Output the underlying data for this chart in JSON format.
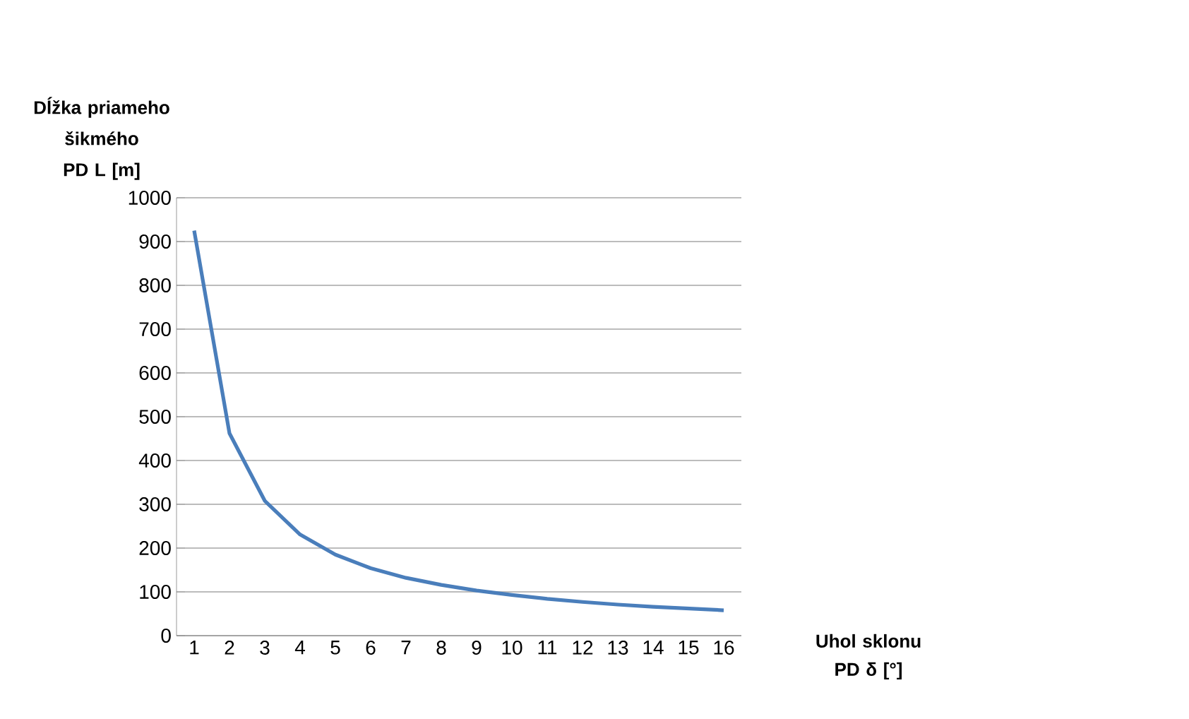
{
  "chart_data": {
    "type": "line",
    "xlabel": "Uhol sklonu PD δ [°]",
    "ylabel": "Dĺžka priameho šikmého PD L [m]",
    "categories": [
      "1",
      "2",
      "3",
      "4",
      "5",
      "6",
      "7",
      "8",
      "9",
      "10",
      "11",
      "12",
      "13",
      "14",
      "15",
      "16"
    ],
    "series": [
      {
        "color": "#4a7ebb",
        "values": [
          925,
          462,
          308,
          231,
          185,
          154,
          132,
          116,
          103,
          93,
          84,
          77,
          71,
          66,
          62,
          58
        ]
      }
    ],
    "ylim": [
      0,
      1000
    ],
    "yticks": [
      0,
      100,
      200,
      300,
      400,
      500,
      600,
      700,
      800,
      900,
      1000
    ],
    "grid": "y",
    "marker": "none",
    "line_style": "solid"
  }
}
